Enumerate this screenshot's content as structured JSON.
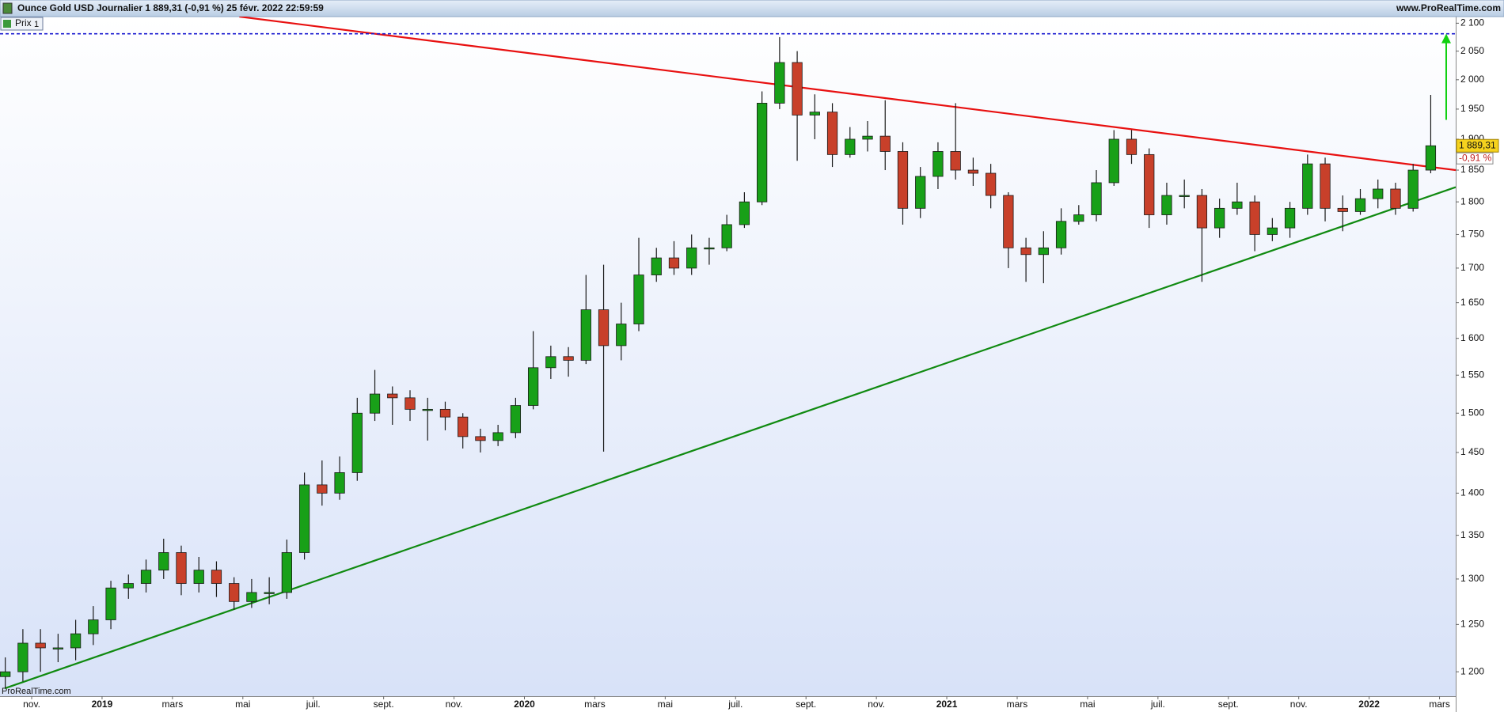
{
  "chart_data": {
    "type": "candlestick",
    "title": "Ounce Gold USD Journalier 1 889,31 (-0,91 %) 25 févr. 2022 22:59:59",
    "source": "www.ProRealTime.com",
    "legend": "Prix",
    "legend_count": "1",
    "watermark": "ProRealTime.com",
    "log_scale": true,
    "up_color": "#18a018",
    "down_color": "#c8402a",
    "x": [
      0.25,
      0.75,
      1.25,
      1.75,
      2.25,
      2.75,
      3.25,
      3.75,
      4.25,
      4.75,
      5.25,
      5.75,
      6.25,
      6.75,
      7.25,
      7.75,
      8.25,
      8.75,
      9.25,
      9.75,
      10.25,
      10.75,
      11.25,
      11.75,
      12.25,
      12.75,
      13.25,
      13.75,
      14.25,
      14.75,
      15.25,
      15.75,
      16.25,
      16.75,
      17.25,
      17.75,
      18.25,
      18.75,
      19.25,
      19.75,
      20.25,
      20.75,
      21.25,
      21.75,
      22.25,
      22.75,
      23.25,
      23.75,
      24.25,
      24.75,
      25.25,
      25.75,
      26.25,
      26.75,
      27.25,
      27.75,
      28.25,
      28.75,
      29.25,
      29.75,
      30.25,
      30.75,
      31.25,
      31.75,
      32.25,
      32.75,
      33.25,
      33.75,
      34.25,
      34.75,
      35.25,
      35.75,
      36.25,
      36.75,
      37.25,
      37.75,
      38.25,
      38.75,
      39.25,
      39.75,
      40.25,
      40.75
    ],
    "open": [
      1195,
      1200,
      1230,
      1225,
      1225,
      1240,
      1255,
      1290,
      1295,
      1310,
      1330,
      1295,
      1310,
      1295,
      1275,
      1285,
      1285,
      1330,
      1410,
      1400,
      1425,
      1500,
      1525,
      1520,
      1505,
      1505,
      1495,
      1470,
      1465,
      1475,
      1510,
      1560,
      1575,
      1570,
      1640,
      1590,
      1620,
      1690,
      1715,
      1700,
      1730,
      1730,
      1765,
      1800,
      1960,
      2030,
      1940,
      1945,
      1875,
      1900,
      1905,
      1880,
      1790,
      1840,
      1880,
      1850,
      1845,
      1810,
      1730,
      1720,
      1730,
      1770,
      1780,
      1830,
      1900,
      1875,
      1780,
      1810,
      1810,
      1760,
      1790,
      1800,
      1750,
      1760,
      1790,
      1860,
      1790,
      1785,
      1805,
      1820,
      1790,
      1850
    ],
    "high": [
      1215,
      1245,
      1245,
      1240,
      1255,
      1270,
      1298,
      1305,
      1322,
      1346,
      1338,
      1325,
      1320,
      1302,
      1300,
      1302,
      1345,
      1425,
      1440,
      1445,
      1520,
      1557,
      1535,
      1530,
      1520,
      1515,
      1500,
      1480,
      1485,
      1520,
      1610,
      1590,
      1588,
      1690,
      1705,
      1650,
      1745,
      1730,
      1740,
      1750,
      1745,
      1780,
      1815,
      1980,
      2075,
      2050,
      1975,
      1960,
      1920,
      1930,
      1965,
      1895,
      1855,
      1895,
      1960,
      1870,
      1860,
      1815,
      1745,
      1755,
      1790,
      1795,
      1850,
      1915,
      1915,
      1885,
      1830,
      1835,
      1820,
      1805,
      1830,
      1810,
      1775,
      1800,
      1875,
      1870,
      1810,
      1820,
      1835,
      1830,
      1860,
      1974
    ],
    "low": [
      1183,
      1190,
      1200,
      1210,
      1212,
      1228,
      1245,
      1278,
      1285,
      1300,
      1282,
      1285,
      1280,
      1266,
      1268,
      1272,
      1278,
      1322,
      1385,
      1392,
      1415,
      1490,
      1485,
      1490,
      1465,
      1478,
      1455,
      1450,
      1458,
      1468,
      1505,
      1545,
      1548,
      1565,
      1451,
      1570,
      1610,
      1680,
      1690,
      1690,
      1705,
      1725,
      1760,
      1795,
      1950,
      1865,
      1900,
      1855,
      1870,
      1880,
      1850,
      1765,
      1775,
      1820,
      1835,
      1825,
      1790,
      1700,
      1680,
      1678,
      1720,
      1765,
      1770,
      1825,
      1860,
      1760,
      1765,
      1790,
      1680,
      1745,
      1780,
      1725,
      1740,
      1745,
      1780,
      1770,
      1755,
      1780,
      1790,
      1780,
      1785,
      1845
    ],
    "close": [
      1200,
      1230,
      1225,
      1225,
      1240,
      1255,
      1290,
      1295,
      1310,
      1330,
      1295,
      1310,
      1295,
      1275,
      1285,
      1285,
      1330,
      1410,
      1400,
      1425,
      1500,
      1525,
      1520,
      1505,
      1505,
      1495,
      1470,
      1465,
      1475,
      1510,
      1560,
      1575,
      1570,
      1640,
      1590,
      1620,
      1690,
      1715,
      1700,
      1730,
      1730,
      1765,
      1800,
      1960,
      2030,
      1940,
      1945,
      1875,
      1900,
      1905,
      1880,
      1790,
      1840,
      1880,
      1850,
      1845,
      1810,
      1730,
      1720,
      1730,
      1770,
      1780,
      1830,
      1900,
      1875,
      1780,
      1810,
      1810,
      1760,
      1790,
      1800,
      1750,
      1760,
      1790,
      1860,
      1790,
      1785,
      1805,
      1820,
      1790,
      1850,
      1889.31
    ],
    "xlim": [
      0.1,
      41.46
    ],
    "ylim": [
      1175,
      2112
    ],
    "xticks": [
      {
        "value": 1,
        "label": "nov."
      },
      {
        "value": 3,
        "label": "2019"
      },
      {
        "value": 5,
        "label": "mars"
      },
      {
        "value": 7,
        "label": "mai"
      },
      {
        "value": 9,
        "label": "juil."
      },
      {
        "value": 11,
        "label": "sept."
      },
      {
        "value": 13,
        "label": "nov."
      },
      {
        "value": 15,
        "label": "2020"
      },
      {
        "value": 17,
        "label": "mars"
      },
      {
        "value": 19,
        "label": "mai"
      },
      {
        "value": 21,
        "label": "juil."
      },
      {
        "value": 23,
        "label": "sept."
      },
      {
        "value": 25,
        "label": "nov."
      },
      {
        "value": 27,
        "label": "2021"
      },
      {
        "value": 29,
        "label": "mars"
      },
      {
        "value": 31,
        "label": "mai"
      },
      {
        "value": 33,
        "label": "juil."
      },
      {
        "value": 35,
        "label": "sept."
      },
      {
        "value": 37,
        "label": "nov."
      },
      {
        "value": 39,
        "label": "2022"
      },
      {
        "value": 41,
        "label": "mars"
      }
    ],
    "yticks": [
      {
        "value": 1200,
        "label": "1 200"
      },
      {
        "value": 1250,
        "label": "1 250"
      },
      {
        "value": 1300,
        "label": "1 300"
      },
      {
        "value": 1350,
        "label": "1 350"
      },
      {
        "value": 1400,
        "label": "1 400"
      },
      {
        "value": 1450,
        "label": "1 450"
      },
      {
        "value": 1500,
        "label": "1 500"
      },
      {
        "value": 1550,
        "label": "1 550"
      },
      {
        "value": 1600,
        "label": "1 600"
      },
      {
        "value": 1650,
        "label": "1 650"
      },
      {
        "value": 1700,
        "label": "1 700"
      },
      {
        "value": 1750,
        "label": "1 750"
      },
      {
        "value": 1800,
        "label": "1 800"
      },
      {
        "value": 1850,
        "label": "1 850"
      },
      {
        "value": 1900,
        "label": "1 900"
      },
      {
        "value": 1950,
        "label": "1 950"
      },
      {
        "value": 2000,
        "label": "2 000"
      },
      {
        "value": 2050,
        "label": "2 050"
      },
      {
        "value": 2100,
        "label": "2 100"
      }
    ],
    "trendlines": [
      {
        "color": "#e81010",
        "x": [
          6.9,
          41.46
        ],
        "y": [
          2112,
          1850
        ]
      },
      {
        "color": "#108a10",
        "x": [
          0.24,
          41.46
        ],
        "y": [
          1183,
          1823
        ]
      }
    ],
    "hline": {
      "value": 2081,
      "color": "#1a1ad0"
    },
    "arrow": {
      "x": 41.19,
      "y": [
        1932,
        2081
      ],
      "color": "#10d010"
    },
    "last_price": {
      "value": 1889.31,
      "label": "1 889,31"
    },
    "change_label": "-0,91 %"
  }
}
